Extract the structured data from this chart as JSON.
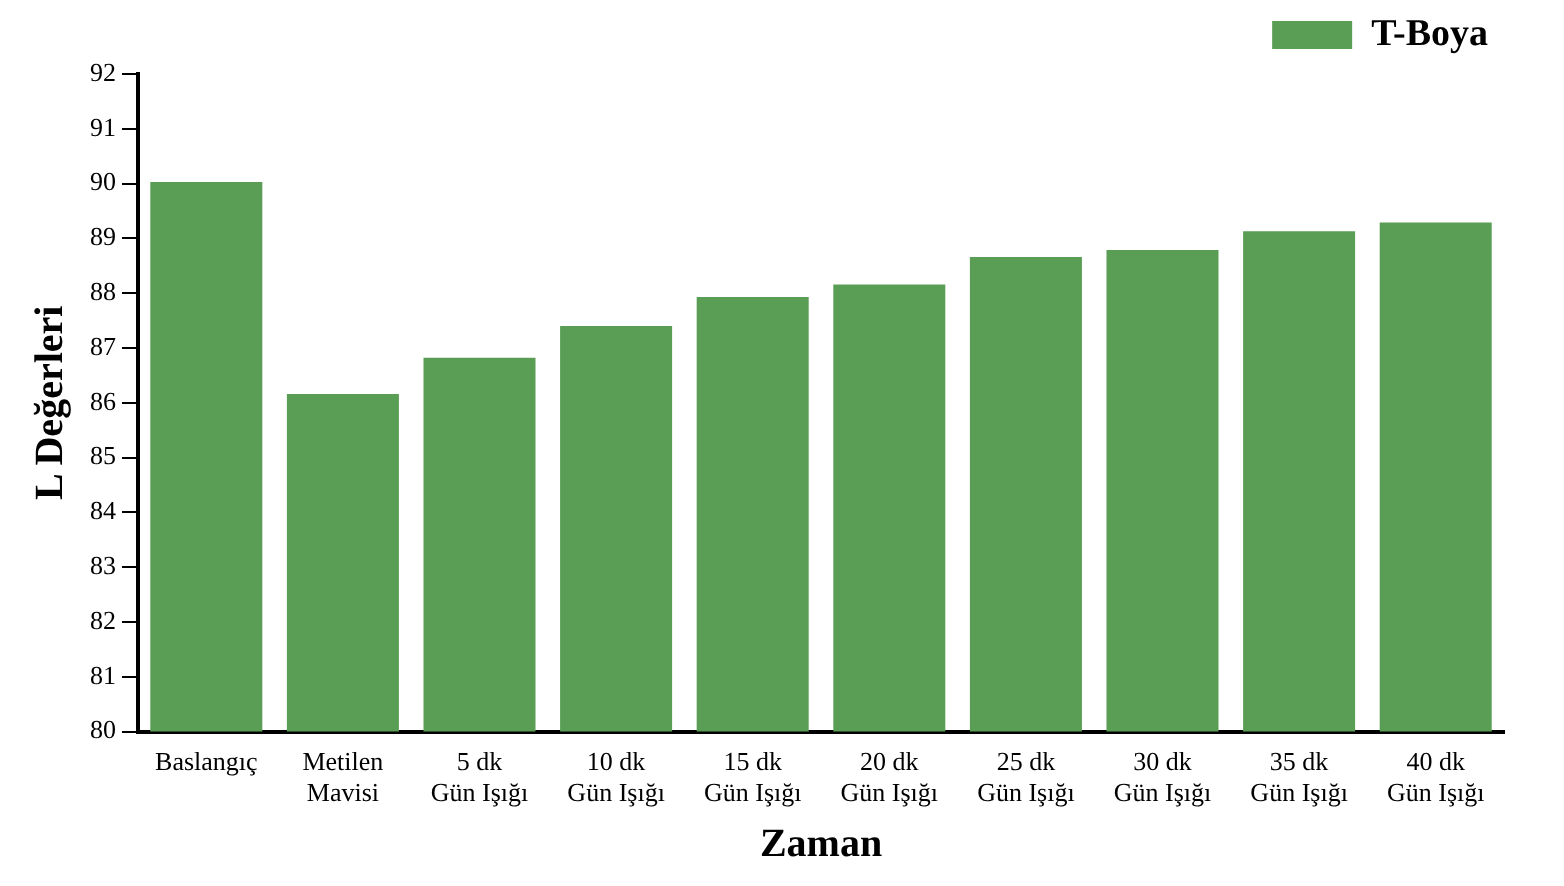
{
  "chart_data": {
    "type": "bar",
    "xlabel": "Zaman",
    "ylabel": "L Değerleri",
    "categories": [
      "Baslangıç",
      "Metilen\nMavisi",
      "5 dk\nGün Işığı",
      "10 dk\nGün Işığı",
      "15 dk\nGün Işığı",
      "20 dk\nGün Işığı",
      "25 dk\nGün Işığı",
      "30 dk\nGün Işığı",
      "35 dk\nGün Işığı",
      "40 dk\nGün Işığı"
    ],
    "series": [
      {
        "name": "T-Boya",
        "color": "#5a9e55",
        "values": [
          90.03,
          86.16,
          86.82,
          87.4,
          87.93,
          88.16,
          88.66,
          88.79,
          89.13,
          89.29
        ]
      }
    ],
    "ylim": [
      80,
      92
    ],
    "yticks": [
      80,
      81,
      82,
      83,
      84,
      85,
      86,
      87,
      88,
      89,
      90,
      91,
      92
    ],
    "grid": false,
    "legend": "top right"
  }
}
